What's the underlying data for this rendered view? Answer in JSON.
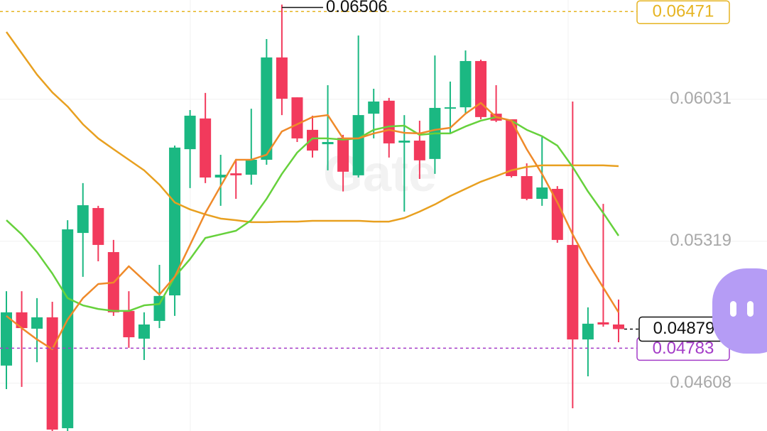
{
  "chart_data": {
    "type": "candlestick",
    "watermark": "Gate",
    "up_color": "#1bb882",
    "down_color": "#f23a5c",
    "open": [
      0.04696,
      0.04963,
      0.04881,
      0.04938,
      0.04382,
      0.05361,
      0.05486,
      0.05265,
      0.0497,
      0.04831,
      0.0492,
      0.05048,
      0.05781,
      0.05935,
      0.05639,
      0.0566,
      0.05653,
      0.05728,
      0.06241,
      0.06041,
      0.05878,
      0.05806,
      0.05838,
      0.0565,
      0.05959,
      0.06024,
      0.05814,
      0.05824,
      0.05732,
      0.05984,
      0.05991,
      0.06223,
      0.05959,
      0.05931,
      0.05646,
      0.05532,
      0.05582,
      0.05301,
      0.04827,
      0.04913,
      0.04902
    ],
    "high": [
      0.05069,
      0.05069,
      0.05034,
      0.05016,
      0.05425,
      0.05611,
      0.05497,
      0.05326,
      0.05069,
      0.04963,
      0.05201,
      0.05799,
      0.05977,
      0.06063,
      0.05753,
      0.05732,
      0.05984,
      0.06333,
      0.06506,
      0.06041,
      0.05949,
      0.06102,
      0.05853,
      0.06351,
      0.06084,
      0.06038,
      0.05952,
      0.05924,
      0.06251,
      0.0612,
      0.06276,
      0.0623,
      0.06102,
      0.05931,
      0.0571,
      0.05842,
      0.05596,
      0.0602,
      0.04988,
      0.05507,
      0.05027
    ],
    "low": [
      0.04578,
      0.04589,
      0.04713,
      0.04368,
      0.04368,
      0.05141,
      0.05219,
      0.04945,
      0.04785,
      0.04724,
      0.04884,
      0.04945,
      0.05586,
      0.05611,
      0.05497,
      0.05532,
      0.05603,
      0.05703,
      0.05952,
      0.05817,
      0.05739,
      0.05675,
      0.05569,
      0.05639,
      0.05835,
      0.05739,
      0.05468,
      0.05632,
      0.05657,
      0.05863,
      0.05959,
      0.05931,
      0.05917,
      0.05639,
      0.05525,
      0.05497,
      0.05312,
      0.04482,
      0.04642,
      0.04891,
      0.04813
    ],
    "close": [
      0.04963,
      0.04884,
      0.04938,
      0.04375,
      0.05379,
      0.055,
      0.05301,
      0.04963,
      0.04838,
      0.04902,
      0.05045,
      0.05789,
      0.05949,
      0.05639,
      0.05653,
      0.0565,
      0.05728,
      0.06241,
      0.06034,
      0.05835,
      0.05774,
      0.05817,
      0.05668,
      0.05952,
      0.0602,
      0.0581,
      0.05824,
      0.05725,
      0.05988,
      0.05991,
      0.06223,
      0.05942,
      0.05924,
      0.05646,
      0.05532,
      0.05589,
      0.05326,
      0.04827,
      0.04906,
      0.04902,
      0.04879
    ],
    "moving_averages": [
      {
        "color": "#e8a020",
        "values": [
          0.06369,
          0.06262,
          0.06155,
          0.06066,
          0.05995,
          0.05906,
          0.05835,
          0.05781,
          0.05728,
          0.05675,
          0.05603,
          0.05514,
          0.05479,
          0.05454,
          0.05433,
          0.05425,
          0.05415,
          0.05415,
          0.05418,
          0.05418,
          0.05422,
          0.05422,
          0.05422,
          0.05422,
          0.05418,
          0.05418,
          0.05436,
          0.05468,
          0.05504,
          0.05546,
          0.05582,
          0.05618,
          0.05646,
          0.05675,
          0.05692,
          0.057,
          0.057,
          0.057,
          0.057,
          0.057,
          0.05696
        ]
      },
      {
        "color": "#66d13c",
        "values": [
          0.05425,
          0.05354,
          0.05265,
          0.05158,
          0.05034,
          0.04998,
          0.0498,
          0.0497,
          0.0497,
          0.04998,
          0.05005,
          0.05141,
          0.0523,
          0.05336,
          0.05354,
          0.05372,
          0.05425,
          0.05532,
          0.05657,
          0.05764,
          0.05835,
          0.05835,
          0.05829,
          0.05835,
          0.05878,
          0.05895,
          0.05899,
          0.05853,
          0.0586,
          0.0586,
          0.05895,
          0.05924,
          0.05942,
          0.05924,
          0.05878,
          0.05846,
          0.05799,
          0.05692,
          0.05569,
          0.05461,
          0.05347
        ]
      },
      {
        "color": "#ef8a2a",
        "values": [
          0.04945,
          0.04884,
          0.04827,
          0.04778,
          0.04927,
          0.05034,
          0.05105,
          0.05112,
          0.05194,
          0.05123,
          0.05052,
          0.05141,
          0.05301,
          0.05461,
          0.05596,
          0.05728,
          0.05728,
          0.05753,
          0.0587,
          0.05906,
          0.05942,
          0.05952,
          0.05835,
          0.05835,
          0.0586,
          0.05878,
          0.05863,
          0.0586,
          0.05878,
          0.05888,
          0.05959,
          0.06013,
          0.05942,
          0.05924,
          0.05781,
          0.05657,
          0.05514,
          0.05354,
          0.05212,
          0.05087,
          0.04963
        ]
      }
    ],
    "price_lines": [
      {
        "value": 0.06471,
        "color": "#e6b422"
      },
      {
        "value": 0.04783,
        "color": "#a43cc8"
      }
    ],
    "last_price_color": "#111111",
    "ylim": [
      0.04368,
      0.06529
    ],
    "yticks": [
      0.04608,
      0.05319,
      0.06031
    ],
    "grid": true
  }
}
